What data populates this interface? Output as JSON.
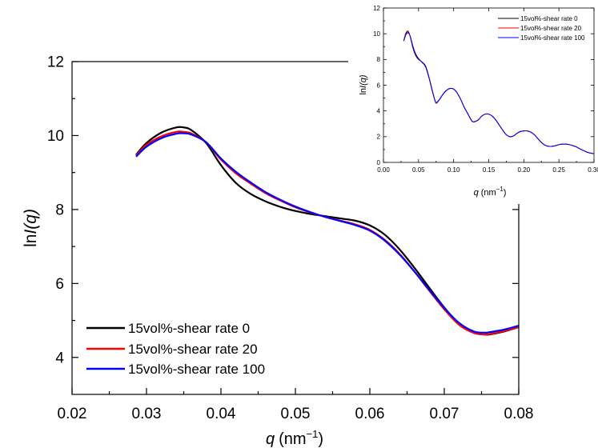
{
  "chart_data": [
    {
      "type": "line",
      "xlabel": "q",
      "xlabel_unit": "(nm",
      "xlabel_exp": "−1",
      "ylabel_prefix": "ln",
      "ylabel_main": "I(q)",
      "xlim": [
        0.02,
        0.08
      ],
      "ylim": [
        3,
        12
      ],
      "xticks": [
        0.02,
        0.03,
        0.04,
        0.05,
        0.06,
        0.07,
        0.08
      ],
      "xtick_labels": [
        "0.02",
        "0.03",
        "0.04",
        "0.05",
        "0.06",
        "0.07",
        "0.08"
      ],
      "yticks": [
        4,
        6,
        8,
        10,
        12
      ],
      "ytick_labels": [
        "4",
        "6",
        "8",
        "10",
        "12"
      ],
      "legend_position": "bottom-left",
      "grid": false,
      "series": [
        {
          "name": "15vol%-shear rate 0",
          "color": "#000000",
          "x": [
            0.0286,
            0.03,
            0.032,
            0.034,
            0.035,
            0.036,
            0.038,
            0.04,
            0.042,
            0.044,
            0.046,
            0.048,
            0.05,
            0.052,
            0.054,
            0.056,
            0.058,
            0.06,
            0.062,
            0.064,
            0.066,
            0.068,
            0.07,
            0.072,
            0.074,
            0.0755,
            0.076,
            0.078,
            0.08
          ],
          "y": [
            9.48,
            9.8,
            10.08,
            10.22,
            10.22,
            10.15,
            9.8,
            9.2,
            8.72,
            8.42,
            8.22,
            8.07,
            7.96,
            7.88,
            7.82,
            7.76,
            7.7,
            7.57,
            7.32,
            6.92,
            6.42,
            5.88,
            5.35,
            4.9,
            4.66,
            4.62,
            4.62,
            4.7,
            4.82
          ]
        },
        {
          "name": "15vol%-shear rate 20",
          "color": "#ff0000",
          "x": [
            0.0286,
            0.03,
            0.032,
            0.034,
            0.035,
            0.036,
            0.038,
            0.04,
            0.042,
            0.044,
            0.046,
            0.048,
            0.05,
            0.052,
            0.054,
            0.056,
            0.058,
            0.06,
            0.062,
            0.064,
            0.066,
            0.068,
            0.07,
            0.072,
            0.074,
            0.0755,
            0.076,
            0.078,
            0.08
          ],
          "y": [
            9.46,
            9.75,
            9.98,
            10.1,
            10.1,
            10.06,
            9.82,
            9.35,
            8.98,
            8.7,
            8.44,
            8.24,
            8.06,
            7.92,
            7.8,
            7.7,
            7.6,
            7.45,
            7.18,
            6.8,
            6.32,
            5.8,
            5.3,
            4.88,
            4.66,
            4.62,
            4.63,
            4.71,
            4.82
          ]
        },
        {
          "name": "15vol%-shear rate 100",
          "color": "#0000ff",
          "x": [
            0.0286,
            0.03,
            0.032,
            0.034,
            0.035,
            0.036,
            0.038,
            0.04,
            0.042,
            0.044,
            0.046,
            0.048,
            0.05,
            0.052,
            0.054,
            0.056,
            0.058,
            0.06,
            0.062,
            0.064,
            0.066,
            0.068,
            0.07,
            0.072,
            0.074,
            0.0755,
            0.076,
            0.078,
            0.08
          ],
          "y": [
            9.43,
            9.7,
            9.93,
            10.05,
            10.06,
            10.03,
            9.82,
            9.38,
            9.02,
            8.73,
            8.47,
            8.26,
            8.08,
            7.93,
            7.8,
            7.69,
            7.58,
            7.43,
            7.16,
            6.78,
            6.32,
            5.82,
            5.34,
            4.93,
            4.7,
            4.67,
            4.68,
            4.75,
            4.86
          ]
        }
      ]
    },
    {
      "type": "line",
      "xlabel": "q",
      "xlabel_unit": "(nm",
      "xlabel_exp": "−1",
      "ylabel_prefix": "ln",
      "ylabel_main": "I(q)",
      "xlim": [
        0.0,
        0.3
      ],
      "ylim": [
        0,
        12
      ],
      "xticks": [
        0.0,
        0.05,
        0.1,
        0.15,
        0.2,
        0.25,
        0.3
      ],
      "xtick_labels": [
        "0.00",
        "0.05",
        "0.10",
        "0.15",
        "0.20",
        "0.25",
        "0.30"
      ],
      "yticks": [
        0,
        2,
        4,
        6,
        8,
        10,
        12
      ],
      "ytick_labels": [
        "0",
        "2",
        "4",
        "6",
        "8",
        "10",
        "12"
      ],
      "legend_position": "top-right",
      "grid": false,
      "series": [
        {
          "name": "15vol%-shear rate 0",
          "color": "#000000",
          "x": [
            0.029,
            0.032,
            0.035,
            0.038,
            0.042,
            0.046,
            0.05,
            0.055,
            0.06,
            0.065,
            0.07,
            0.074,
            0.076,
            0.08,
            0.085,
            0.09,
            0.095,
            0.1,
            0.105,
            0.11,
            0.115,
            0.12,
            0.125,
            0.128,
            0.135,
            0.14,
            0.145,
            0.15,
            0.155,
            0.16,
            0.165,
            0.17,
            0.175,
            0.18,
            0.185,
            0.19,
            0.195,
            0.2,
            0.205,
            0.21,
            0.215,
            0.22,
            0.225,
            0.23,
            0.235,
            0.24,
            0.245,
            0.25,
            0.255,
            0.26,
            0.265,
            0.27,
            0.275,
            0.28,
            0.285,
            0.29,
            0.295,
            0.3
          ],
          "y": [
            9.5,
            10.05,
            10.2,
            9.8,
            8.9,
            8.3,
            8.0,
            7.8,
            7.5,
            6.6,
            5.5,
            4.7,
            4.62,
            4.9,
            5.3,
            5.6,
            5.75,
            5.7,
            5.4,
            4.9,
            4.3,
            3.8,
            3.3,
            3.15,
            3.3,
            3.6,
            3.75,
            3.75,
            3.6,
            3.3,
            2.9,
            2.5,
            2.15,
            2.0,
            2.05,
            2.25,
            2.4,
            2.45,
            2.45,
            2.35,
            2.15,
            1.85,
            1.55,
            1.35,
            1.25,
            1.25,
            1.3,
            1.38,
            1.42,
            1.42,
            1.38,
            1.3,
            1.2,
            1.05,
            0.92,
            0.8,
            0.72,
            0.68
          ]
        },
        {
          "name": "15vol%-shear rate 20",
          "color": "#ff0000",
          "x": [
            0.029,
            0.032,
            0.035,
            0.038,
            0.042,
            0.046,
            0.05,
            0.055,
            0.06,
            0.065,
            0.07,
            0.074,
            0.076,
            0.08,
            0.085,
            0.09,
            0.095,
            0.1,
            0.105,
            0.11,
            0.115,
            0.12,
            0.125,
            0.128,
            0.135,
            0.14,
            0.145,
            0.15,
            0.155,
            0.16,
            0.165,
            0.17,
            0.175,
            0.18,
            0.185,
            0.19,
            0.195,
            0.2,
            0.205,
            0.21,
            0.215,
            0.22,
            0.225,
            0.23,
            0.235,
            0.24,
            0.245,
            0.25,
            0.255,
            0.26,
            0.265,
            0.27,
            0.275,
            0.28,
            0.285,
            0.29,
            0.295,
            0.3
          ],
          "y": [
            9.47,
            9.97,
            10.1,
            9.82,
            9.0,
            8.4,
            8.05,
            7.77,
            7.45,
            6.55,
            5.45,
            4.7,
            4.63,
            4.9,
            5.3,
            5.6,
            5.75,
            5.7,
            5.4,
            4.9,
            4.3,
            3.8,
            3.3,
            3.15,
            3.3,
            3.6,
            3.75,
            3.75,
            3.6,
            3.3,
            2.9,
            2.5,
            2.15,
            2.0,
            2.05,
            2.25,
            2.4,
            2.45,
            2.45,
            2.35,
            2.15,
            1.85,
            1.55,
            1.35,
            1.25,
            1.25,
            1.3,
            1.38,
            1.42,
            1.42,
            1.38,
            1.3,
            1.2,
            1.05,
            0.92,
            0.8,
            0.72,
            0.68
          ]
        },
        {
          "name": "15vol%-shear rate 100",
          "color": "#0000ff",
          "x": [
            0.029,
            0.032,
            0.035,
            0.038,
            0.042,
            0.046,
            0.05,
            0.055,
            0.06,
            0.065,
            0.07,
            0.074,
            0.076,
            0.08,
            0.085,
            0.09,
            0.095,
            0.1,
            0.105,
            0.11,
            0.115,
            0.12,
            0.125,
            0.128,
            0.135,
            0.14,
            0.145,
            0.15,
            0.155,
            0.16,
            0.165,
            0.17,
            0.175,
            0.18,
            0.185,
            0.19,
            0.195,
            0.2,
            0.205,
            0.21,
            0.215,
            0.22,
            0.225,
            0.23,
            0.235,
            0.24,
            0.245,
            0.25,
            0.255,
            0.26,
            0.265,
            0.27,
            0.275,
            0.28,
            0.285,
            0.29,
            0.295,
            0.3
          ],
          "y": [
            9.43,
            9.92,
            10.06,
            9.82,
            9.02,
            8.42,
            8.07,
            7.78,
            7.43,
            6.55,
            5.48,
            4.73,
            4.67,
            4.92,
            5.32,
            5.6,
            5.75,
            5.7,
            5.4,
            4.9,
            4.3,
            3.8,
            3.3,
            3.15,
            3.3,
            3.6,
            3.75,
            3.75,
            3.6,
            3.3,
            2.9,
            2.5,
            2.15,
            2.0,
            2.05,
            2.25,
            2.4,
            2.45,
            2.45,
            2.35,
            2.15,
            1.85,
            1.55,
            1.35,
            1.25,
            1.25,
            1.3,
            1.38,
            1.42,
            1.42,
            1.38,
            1.3,
            1.2,
            1.05,
            0.92,
            0.8,
            0.72,
            0.68
          ]
        }
      ]
    }
  ]
}
